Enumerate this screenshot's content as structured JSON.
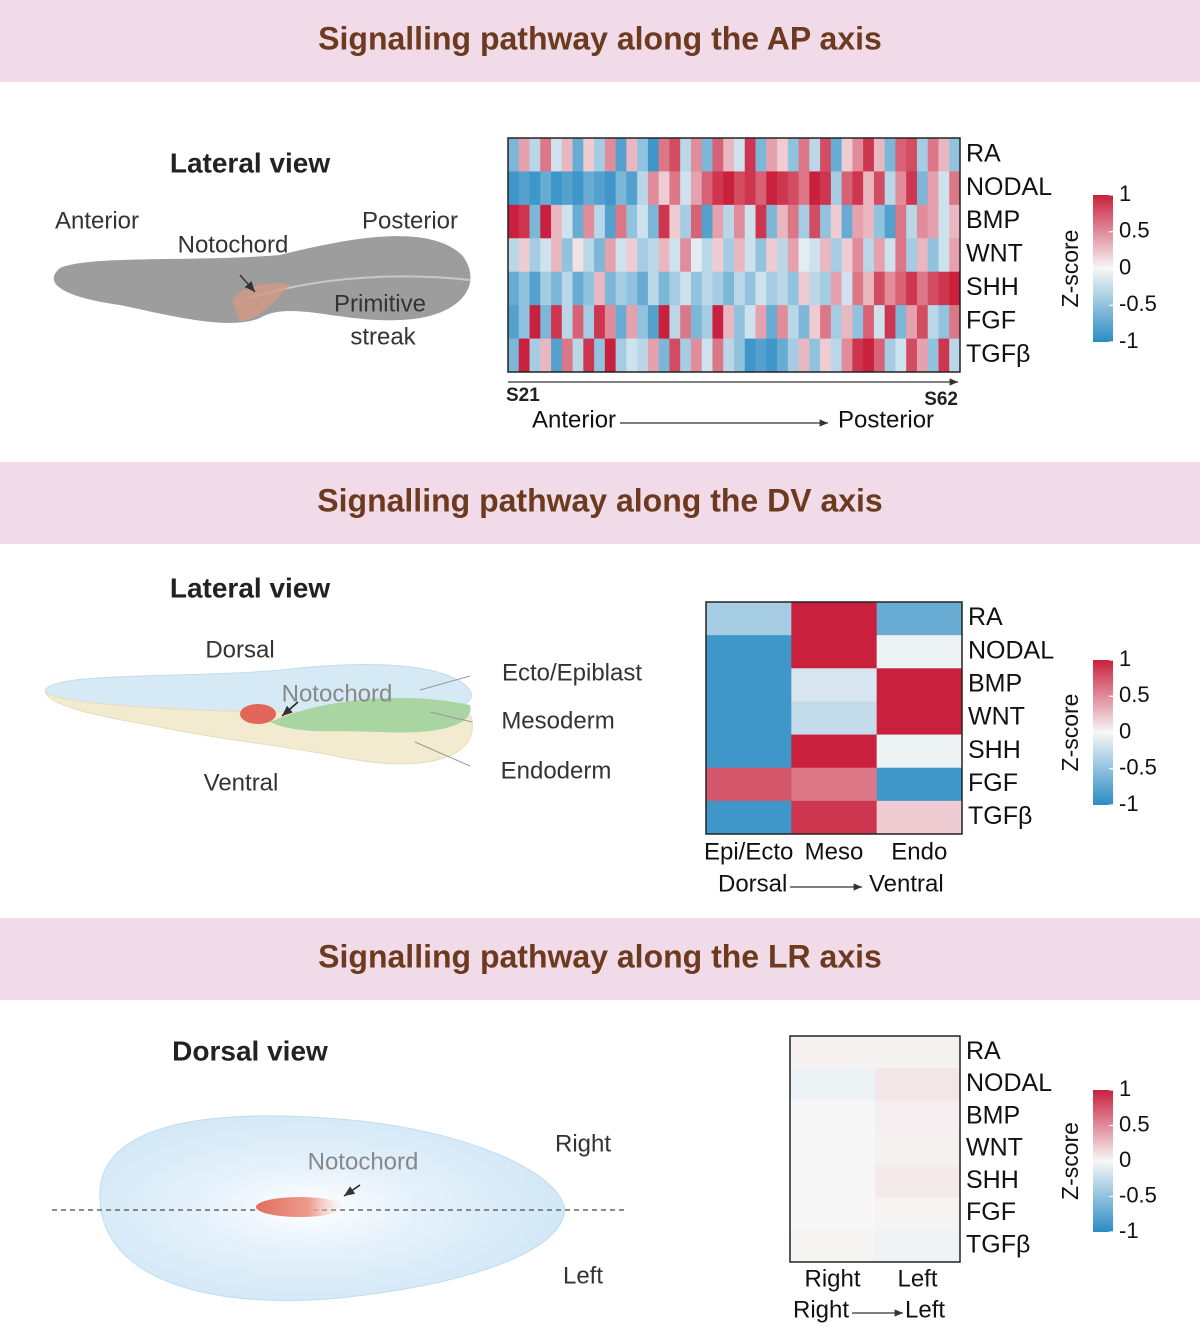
{
  "panels": [
    {
      "title": "Signalling pathway along the AP axis",
      "view": "Lateral view",
      "labels": [
        "Anterior",
        "Notochord",
        "Posterior",
        "Primitive",
        "streak"
      ],
      "heatmap": {
        "type": "heatmap",
        "rows": [
          "RA",
          "NODAL",
          "BMP",
          "WNT",
          "SHH",
          "FGF",
          "TGFβ"
        ],
        "columns": [
          "S21",
          null,
          null,
          null,
          null,
          null,
          null,
          null,
          null,
          null,
          null,
          null,
          null,
          null,
          null,
          null,
          null,
          null,
          null,
          null,
          null,
          null,
          null,
          null,
          null,
          null,
          null,
          null,
          null,
          null,
          null,
          null,
          null,
          null,
          null,
          null,
          null,
          null,
          null,
          null,
          null,
          "S62"
        ],
        "values": [
          [
            -0.6,
            0.4,
            -0.3,
            0.6,
            -0.2,
            0.3,
            -0.7,
            0.2,
            -0.4,
            0.5,
            -0.8,
            0.3,
            -0.5,
            -0.9,
            0.6,
            0.8,
            -0.3,
            0.5,
            -0.6,
            0.7,
            0.3,
            -0.2,
            0.9,
            -0.6,
            0.4,
            0.2,
            -0.5,
            0.6,
            -0.3,
            0.8,
            -0.7,
            0.2,
            0.5,
            0.9,
            0.3,
            -0.6,
            0.7,
            0.8,
            -0.4,
            0.6,
            0.3,
            -0.5
          ],
          [
            -0.9,
            -0.8,
            -0.9,
            -0.7,
            -0.9,
            -0.8,
            -0.9,
            -0.7,
            -0.8,
            -0.9,
            -0.6,
            -0.8,
            -0.3,
            0.5,
            0.2,
            0.6,
            -0.2,
            0.4,
            0.7,
            0.9,
            1,
            0.8,
            0.9,
            0.7,
            1,
            0.9,
            0.8,
            0.6,
            1,
            0.9,
            -0.4,
            0.7,
            0.9,
            0.3,
            0.8,
            -0.3,
            0.5,
            0.9,
            -0.6,
            0.4,
            -0.2,
            0.6
          ],
          [
            1,
            0.9,
            -0.6,
            1,
            0.3,
            -0.2,
            -0.7,
            0.5,
            -0.3,
            -0.8,
            0.6,
            -0.5,
            -0.2,
            -0.6,
            0.9,
            0.2,
            -0.4,
            0.7,
            -0.8,
            0.4,
            -0.3,
            0.5,
            -0.2,
            0.9,
            -0.6,
            0.3,
            0.6,
            -0.4,
            0.8,
            -0.5,
            0.2,
            -0.7,
            0.4,
            0.3,
            -0.5,
            -0.8,
            0.6,
            -0.3,
            0.5,
            0.4,
            -0.2,
            0.3
          ],
          [
            -0.3,
            0.2,
            -0.4,
            -0.2,
            0.3,
            -0.5,
            0.1,
            -0.3,
            -0.6,
            0.4,
            -0.2,
            0.2,
            -0.4,
            -0.3,
            0.3,
            -0.2,
            0.5,
            -0.1,
            -0.3,
            0.2,
            -0.4,
            0.3,
            -0.2,
            -0.5,
            0.2,
            -0.3,
            0.4,
            -0.1,
            -0.2,
            0.3,
            -0.4,
            0.2,
            0.5,
            -0.3,
            0.4,
            -0.2,
            0.6,
            -0.4,
            0.3,
            -0.5,
            -0.2,
            0.4
          ],
          [
            -0.7,
            -0.5,
            -0.8,
            -0.4,
            -0.6,
            -0.3,
            -0.7,
            -0.5,
            0.3,
            -0.6,
            -0.4,
            -0.5,
            -0.7,
            -0.3,
            -0.6,
            -0.4,
            -0.2,
            -0.5,
            -0.3,
            -0.4,
            -0.6,
            -0.3,
            -0.5,
            -0.2,
            -0.4,
            -0.3,
            -0.5,
            0.2,
            -0.3,
            -0.4,
            0.4,
            -0.2,
            0.6,
            0.3,
            0.8,
            0.5,
            0.7,
            0.9,
            0.6,
            0.8,
            0.9,
            1
          ],
          [
            -0.8,
            -0.5,
            1,
            -0.6,
            0.9,
            -0.3,
            0.7,
            -0.4,
            0.9,
            0.5,
            -0.7,
            0.4,
            -0.5,
            -0.8,
            1,
            -0.3,
            0.6,
            -0.6,
            -0.4,
            1,
            0.3,
            -0.5,
            -0.2,
            0.4,
            -0.7,
            0.5,
            -0.3,
            -0.6,
            0.2,
            0.6,
            -0.4,
            0.3,
            -0.5,
            0.7,
            -0.2,
            0.9,
            -0.6,
            0.4,
            0.8,
            -0.3,
            -0.5,
            0.6
          ],
          [
            -0.6,
            1,
            -0.4,
            0.3,
            -0.8,
            0.6,
            -0.3,
            0.9,
            -0.5,
            1,
            -0.4,
            -0.2,
            -0.3,
            0.4,
            -0.6,
            0.8,
            -0.4,
            0.5,
            -0.2,
            0.6,
            -0.3,
            -0.5,
            -0.9,
            -0.8,
            -0.9,
            -0.7,
            -0.4,
            0.3,
            -0.5,
            0.2,
            -0.3,
            0.5,
            0.9,
            1,
            0.7,
            -0.4,
            -0.2,
            0.8,
            0.4,
            -0.5,
            0.9,
            -0.3
          ]
        ],
        "axis": {
          "from": "Anterior",
          "to": "Posterior"
        },
        "colorbar": {
          "label": "Z-score",
          "lim": [
            -1,
            1
          ],
          "ticks": [
            1,
            0.5,
            0,
            -0.5,
            -1
          ],
          "colors": [
            "#2b8cc4",
            "#f7f7f7",
            "#c9213d"
          ]
        }
      }
    },
    {
      "title": "Signalling pathway along the DV axis",
      "view": "Lateral view",
      "labels": [
        "Dorsal",
        "Notochord",
        "Ventral",
        "Ecto/Epiblast",
        "Mesoderm",
        "Endoderm"
      ],
      "heatmap": {
        "type": "heatmap",
        "rows": [
          "RA",
          "NODAL",
          "BMP",
          "WNT",
          "SHH",
          "FGF",
          "TGFβ"
        ],
        "columns": [
          "Epi/Ecto",
          "Meso",
          "Endo"
        ],
        "values": [
          [
            -0.4,
            1,
            -0.7
          ],
          [
            -0.9,
            1,
            -0.05
          ],
          [
            -0.9,
            -0.15,
            1
          ],
          [
            -0.9,
            -0.25,
            1
          ],
          [
            -0.9,
            1,
            -0.05
          ],
          [
            0.75,
            0.6,
            -0.9
          ],
          [
            -0.9,
            0.9,
            0.2
          ]
        ],
        "axis": {
          "from": "Dorsal",
          "to": "Ventral"
        },
        "colorbar": {
          "label": "Z-score",
          "lim": [
            -1,
            1
          ],
          "ticks": [
            1,
            0.5,
            0,
            -0.5,
            -1
          ],
          "colors": [
            "#2b8cc4",
            "#f7f7f7",
            "#c9213d"
          ]
        }
      }
    },
    {
      "title": "Signalling pathway along the LR axis",
      "view": "Dorsal view",
      "labels": [
        "Notochord",
        "Right",
        "Left"
      ],
      "heatmap": {
        "type": "heatmap",
        "rows": [
          "RA",
          "NODAL",
          "BMP",
          "WNT",
          "SHH",
          "FGF",
          "TGFβ"
        ],
        "columns": [
          "Right",
          "Left"
        ],
        "values": [
          [
            0.03,
            0.03
          ],
          [
            -0.05,
            0.08
          ],
          [
            0,
            0.04
          ],
          [
            0,
            0.03
          ],
          [
            0,
            0.06
          ],
          [
            0,
            0.02
          ],
          [
            0.02,
            -0.04
          ]
        ],
        "axis": {
          "from": "Right",
          "to": "Left"
        },
        "colorbar": {
          "label": "Z-score",
          "lim": [
            -1,
            1
          ],
          "ticks": [
            1,
            0.5,
            0,
            -0.5,
            -1
          ],
          "colors": [
            "#2b8cc4",
            "#f7f7f7",
            "#c9213d"
          ]
        }
      }
    }
  ]
}
